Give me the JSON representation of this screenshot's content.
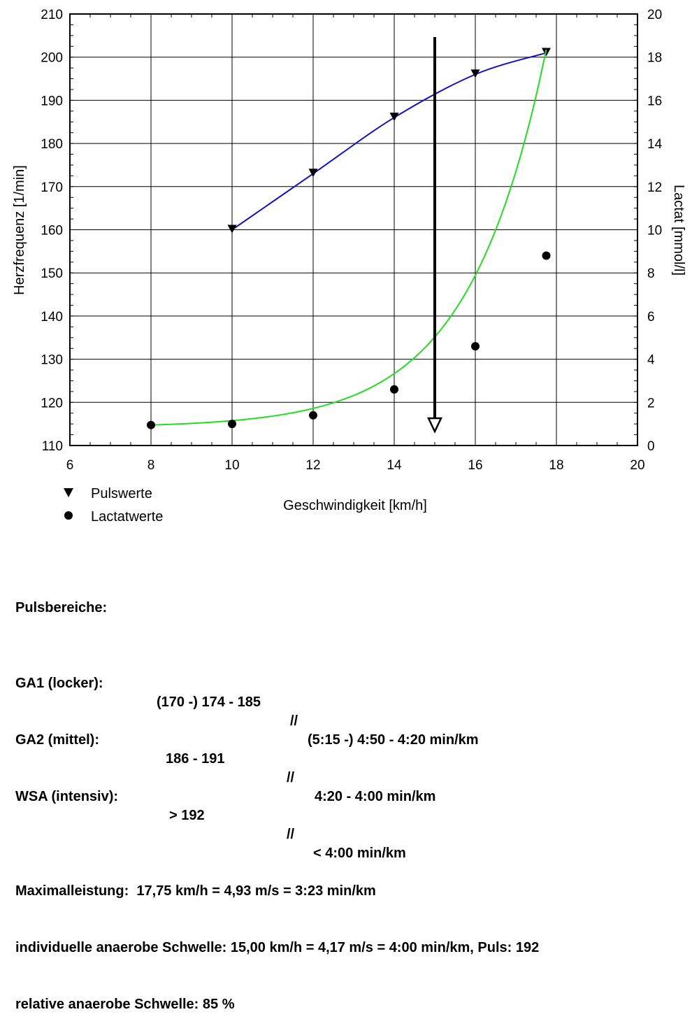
{
  "chart_data": {
    "type": "line",
    "title": "",
    "xlabel": "Geschwindigkeit [km/h]",
    "ylabel_left": "Herzfrequenz [1/min]",
    "ylabel_right": "Lactat [mmol/l]",
    "xlim": [
      6,
      20
    ],
    "ylim_left": [
      110,
      210
    ],
    "ylim_right": [
      0,
      20
    ],
    "x_ticks": [
      "6",
      "8",
      "10",
      "12",
      "14",
      "16",
      "18",
      "20"
    ],
    "y_left_ticks": [
      "110",
      "120",
      "130",
      "140",
      "150",
      "160",
      "170",
      "180",
      "190",
      "200",
      "210"
    ],
    "y_right_ticks": [
      "0",
      "2",
      "4",
      "6",
      "8",
      "10",
      "12",
      "14",
      "16",
      "18",
      "20"
    ],
    "grid": true,
    "legend_position": "bottom-left",
    "series": [
      {
        "name": "Pulswerte",
        "axis": "left",
        "marker": "triangle-down",
        "color": "#1010c8",
        "x": [
          10,
          12,
          14,
          16,
          17.75
        ],
        "y": [
          160,
          173,
          186,
          196,
          201
        ]
      },
      {
        "name": "Lactatwerte",
        "axis": "right",
        "marker": "circle",
        "color": "#22dd22",
        "x": [
          8,
          10,
          12,
          14,
          16,
          17.75
        ],
        "y": [
          0.95,
          1.0,
          1.4,
          2.6,
          4.6,
          8.8
        ]
      }
    ],
    "threshold_marker": {
      "x": 15,
      "type": "arrow-down",
      "color": "#000000"
    }
  },
  "summary": {
    "heading": "Pulsbereiche:",
    "zones": [
      {
        "name": "GA1 (locker):",
        "pulse": "(170 -) 174 - 185",
        "sep": "//",
        "pace": "(5:15 -) 4:50 - 4:20 min/km"
      },
      {
        "name": "GA2 (mittel):",
        "pulse": "186 - 191",
        "sep": "//",
        "pace": "4:20 - 4:00 min/km"
      },
      {
        "name": "WSA (intensiv):",
        "pulse": "> 192",
        "sep": "//",
        "pace": "< 4:00 min/km"
      }
    ],
    "max_performance": "Maximalleistung:  17,75 km/h = 4,93 m/s = 3:23 min/km",
    "anaerobic_threshold": "individuelle anaerobe Schwelle: 15,00 km/h = 4,17 m/s = 4:00 min/km, Puls: 192",
    "relative_threshold": "relative anaerobe Schwelle: 85 %"
  }
}
